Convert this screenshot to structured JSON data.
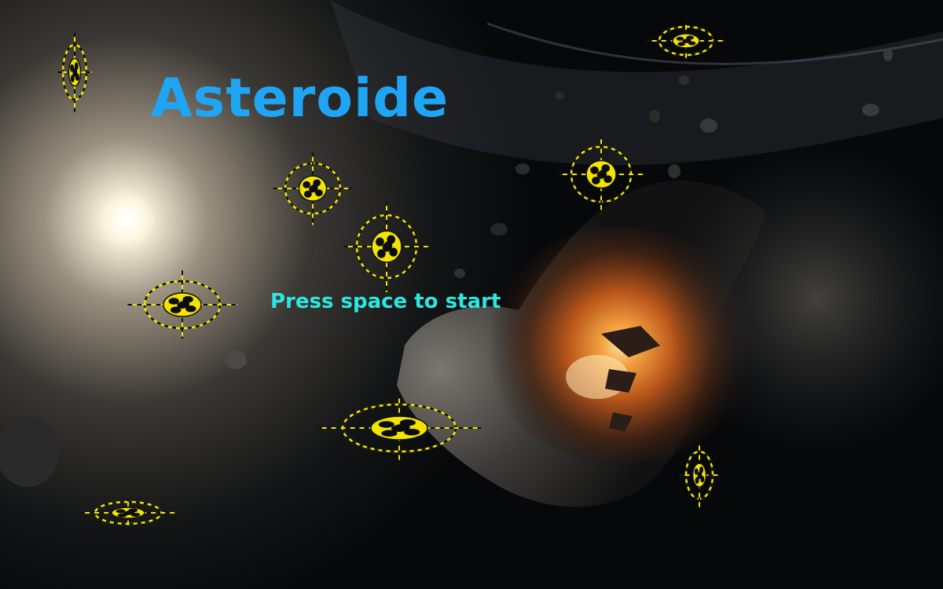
{
  "game": {
    "title": "Asteroide",
    "prompt": "Press space to start"
  },
  "colors": {
    "title": "#1ea6f5",
    "prompt": "#2ee6e0",
    "target_fill": "#f2e400",
    "target_dash": "#111111",
    "rock": "#0c0c0c"
  },
  "sprites": {
    "target_icon": "asteroid-target-icon",
    "count": 10
  }
}
